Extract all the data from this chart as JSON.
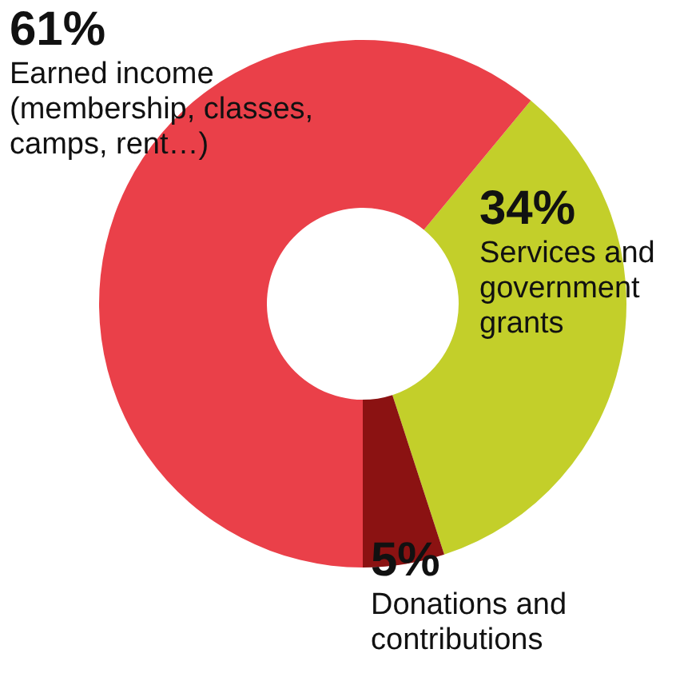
{
  "chart_data": {
    "type": "donut",
    "categories": [
      "Services and government grants",
      "Donations and contributions",
      "Earned income (membership, classes, camps, rent…)"
    ],
    "values": [
      34,
      5,
      61
    ],
    "colors": [
      "#c3cf2a",
      "#8b1212",
      "#ea4049"
    ],
    "value_labels": [
      "34%",
      "5%",
      "61%"
    ]
  }
}
